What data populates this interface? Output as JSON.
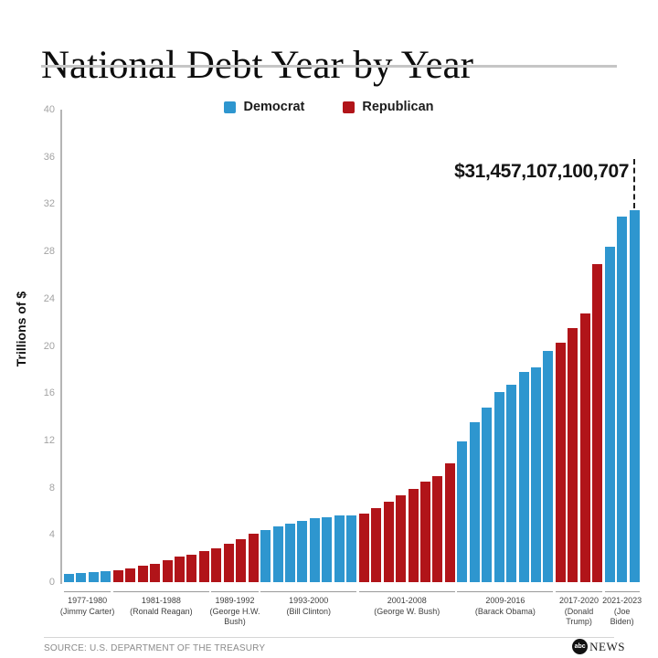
{
  "header": {
    "title": "National Debt Year by Year"
  },
  "footer": {
    "source": "SOURCE: U.S. DEPARTMENT OF THE TREASURY",
    "logo": {
      "abc": "abc",
      "news": "NEWS"
    }
  },
  "chart_data": {
    "type": "bar",
    "title": "National Debt Year by Year",
    "xlabel": "",
    "ylabel": "Trillions of $",
    "ylim": [
      0,
      40
    ],
    "yticks": [
      0,
      4,
      8,
      12,
      16,
      20,
      24,
      28,
      32,
      36,
      40
    ],
    "grid": false,
    "legend_position": "top-center",
    "legend": [
      {
        "label": "Democrat",
        "color": "#2e96cf"
      },
      {
        "label": "Republican",
        "color": "#b11419"
      }
    ],
    "party_colors": {
      "Democrat": "#2e96cf",
      "Republican": "#b11419"
    },
    "annotation": {
      "text": "$31,457,107,100,707",
      "target": "last-bar"
    },
    "groups": [
      {
        "years": "1977-1980",
        "president_lines": [
          "(Jimmy Carter)"
        ],
        "party": "Democrat",
        "values": [
          0.7,
          0.78,
          0.83,
          0.91
        ]
      },
      {
        "years": "1981-1988",
        "president_lines": [
          "(Ronald Reagan)"
        ],
        "party": "Republican",
        "values": [
          1.0,
          1.14,
          1.38,
          1.57,
          1.82,
          2.13,
          2.35,
          2.6
        ]
      },
      {
        "years": "1989-1992",
        "president_lines": [
          "(George H.W.",
          "Bush)"
        ],
        "party": "Republican",
        "values": [
          2.86,
          3.23,
          3.67,
          4.07
        ]
      },
      {
        "years": "1993-2000",
        "president_lines": [
          "(Bill Clinton)"
        ],
        "party": "Democrat",
        "values": [
          4.41,
          4.69,
          4.97,
          5.22,
          5.41,
          5.53,
          5.66,
          5.67
        ]
      },
      {
        "years": "2001-2008",
        "president_lines": [
          "(George W. Bush)"
        ],
        "party": "Republican",
        "values": [
          5.81,
          6.23,
          6.78,
          7.38,
          7.93,
          8.51,
          9.01,
          10.03
        ]
      },
      {
        "years": "2009-2016",
        "president_lines": [
          "(Barack Obama)"
        ],
        "party": "Democrat",
        "values": [
          11.91,
          13.56,
          14.79,
          16.07,
          16.74,
          17.82,
          18.15,
          19.57
        ]
      },
      {
        "years": "2017-2020",
        "president_lines": [
          "(Donald",
          "Trump)"
        ],
        "party": "Republican",
        "values": [
          20.25,
          21.52,
          22.72,
          26.95
        ]
      },
      {
        "years": "2021-2023",
        "president_lines": [
          "(Joe",
          "Biden)"
        ],
        "party": "Democrat",
        "values": [
          28.43,
          30.93,
          31.46
        ]
      }
    ]
  }
}
